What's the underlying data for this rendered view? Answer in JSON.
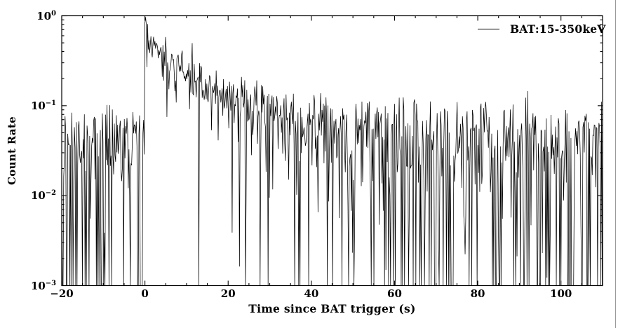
{
  "figure": {
    "background": "#ffffff",
    "window_border_color": "#9a9a9a"
  },
  "chart_data": {
    "type": "line",
    "title": "",
    "xlabel": "Time since BAT trigger (s)",
    "ylabel": "Count Rate",
    "grid": false,
    "x_axis": {
      "min": -20,
      "max": 110,
      "major_ticks": [
        -20,
        0,
        20,
        40,
        60,
        80,
        100
      ],
      "minor_tick_step": 5
    },
    "y_axis": {
      "scale": "log",
      "base": 10,
      "min_exp": -3,
      "max_exp": 0,
      "major_tick_exponents": [
        0,
        -1,
        -2,
        -3
      ],
      "minor_tick_mantissas": [
        2,
        3,
        4,
        5,
        6,
        7,
        8,
        9
      ]
    },
    "legend": {
      "position": "top-right",
      "entries": [
        {
          "label": "BAT:15-350keV",
          "color": "#000000"
        }
      ]
    },
    "series": [
      {
        "name": "BAT:15-350keV",
        "color": "#000000",
        "line_width": 0.75,
        "model": {
          "description": "GRB light curve: flat noisy background, sharp rise at t=0 peaking at count rate 1.0, exponential decay (tau ~13 s) merging back into background; bins at/below the log floor are clipped, producing full-depth downward spikes",
          "bin_seconds": 0.16,
          "background_rate": 0.032,
          "burst_amplitude": 0.45,
          "burst_decay_tau": 13,
          "peak_spike_amplitude": 0.6,
          "peak_spike_tau": 0.25,
          "noise_fractional": 0.33,
          "noise_additive": 0.035,
          "deep_dip_probability": 0.012,
          "deep_dip_factor": 0.02,
          "clip_min": 0.001,
          "clip_max": 1.0,
          "seed": 1337,
          "envelope_samples": {
            "t": [
              -20,
              -10,
              -1,
              0.2,
              1,
              5,
              10,
              20,
              30,
              40,
              60,
              80,
              100,
              110
            ],
            "rate": [
              0.032,
              0.032,
              0.032,
              1.0,
              0.48,
              0.37,
              0.24,
              0.13,
              0.077,
              0.053,
              0.035,
              0.033,
              0.032,
              0.032
            ]
          }
        }
      }
    ]
  }
}
